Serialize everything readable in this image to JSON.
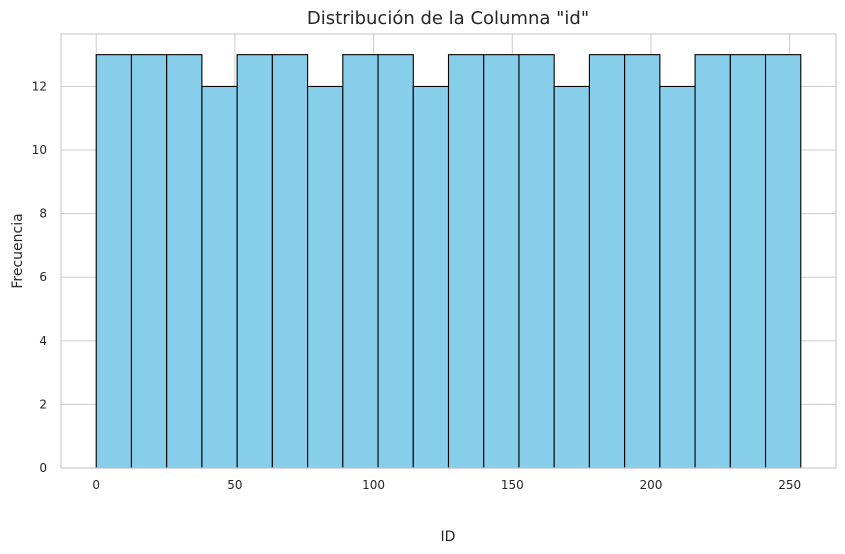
{
  "chart_data": {
    "type": "bar",
    "title": "Distribución de la Columna \"id\"",
    "xlabel": "ID",
    "ylabel": "Frecuencia",
    "bin_edges": [
      0,
      12.7,
      25.4,
      38.1,
      50.8,
      63.5,
      76.2,
      88.9,
      101.6,
      114.3,
      127,
      139.7,
      152.4,
      165.1,
      177.8,
      190.5,
      203.2,
      215.9,
      228.6,
      241.3,
      254
    ],
    "values": [
      13,
      13,
      13,
      12,
      13,
      13,
      12,
      13,
      13,
      12,
      13,
      13,
      13,
      12,
      13,
      13,
      12,
      13,
      13,
      13
    ],
    "xlim": [
      -12.7,
      266.7
    ],
    "ylim": [
      0,
      13.65
    ],
    "xticks": [
      0,
      50,
      100,
      150,
      200,
      250
    ],
    "yticks": [
      0,
      2,
      4,
      6,
      8,
      10,
      12
    ],
    "grid": true,
    "bar_color": "#87CEEB",
    "edge_color": "#000000"
  }
}
